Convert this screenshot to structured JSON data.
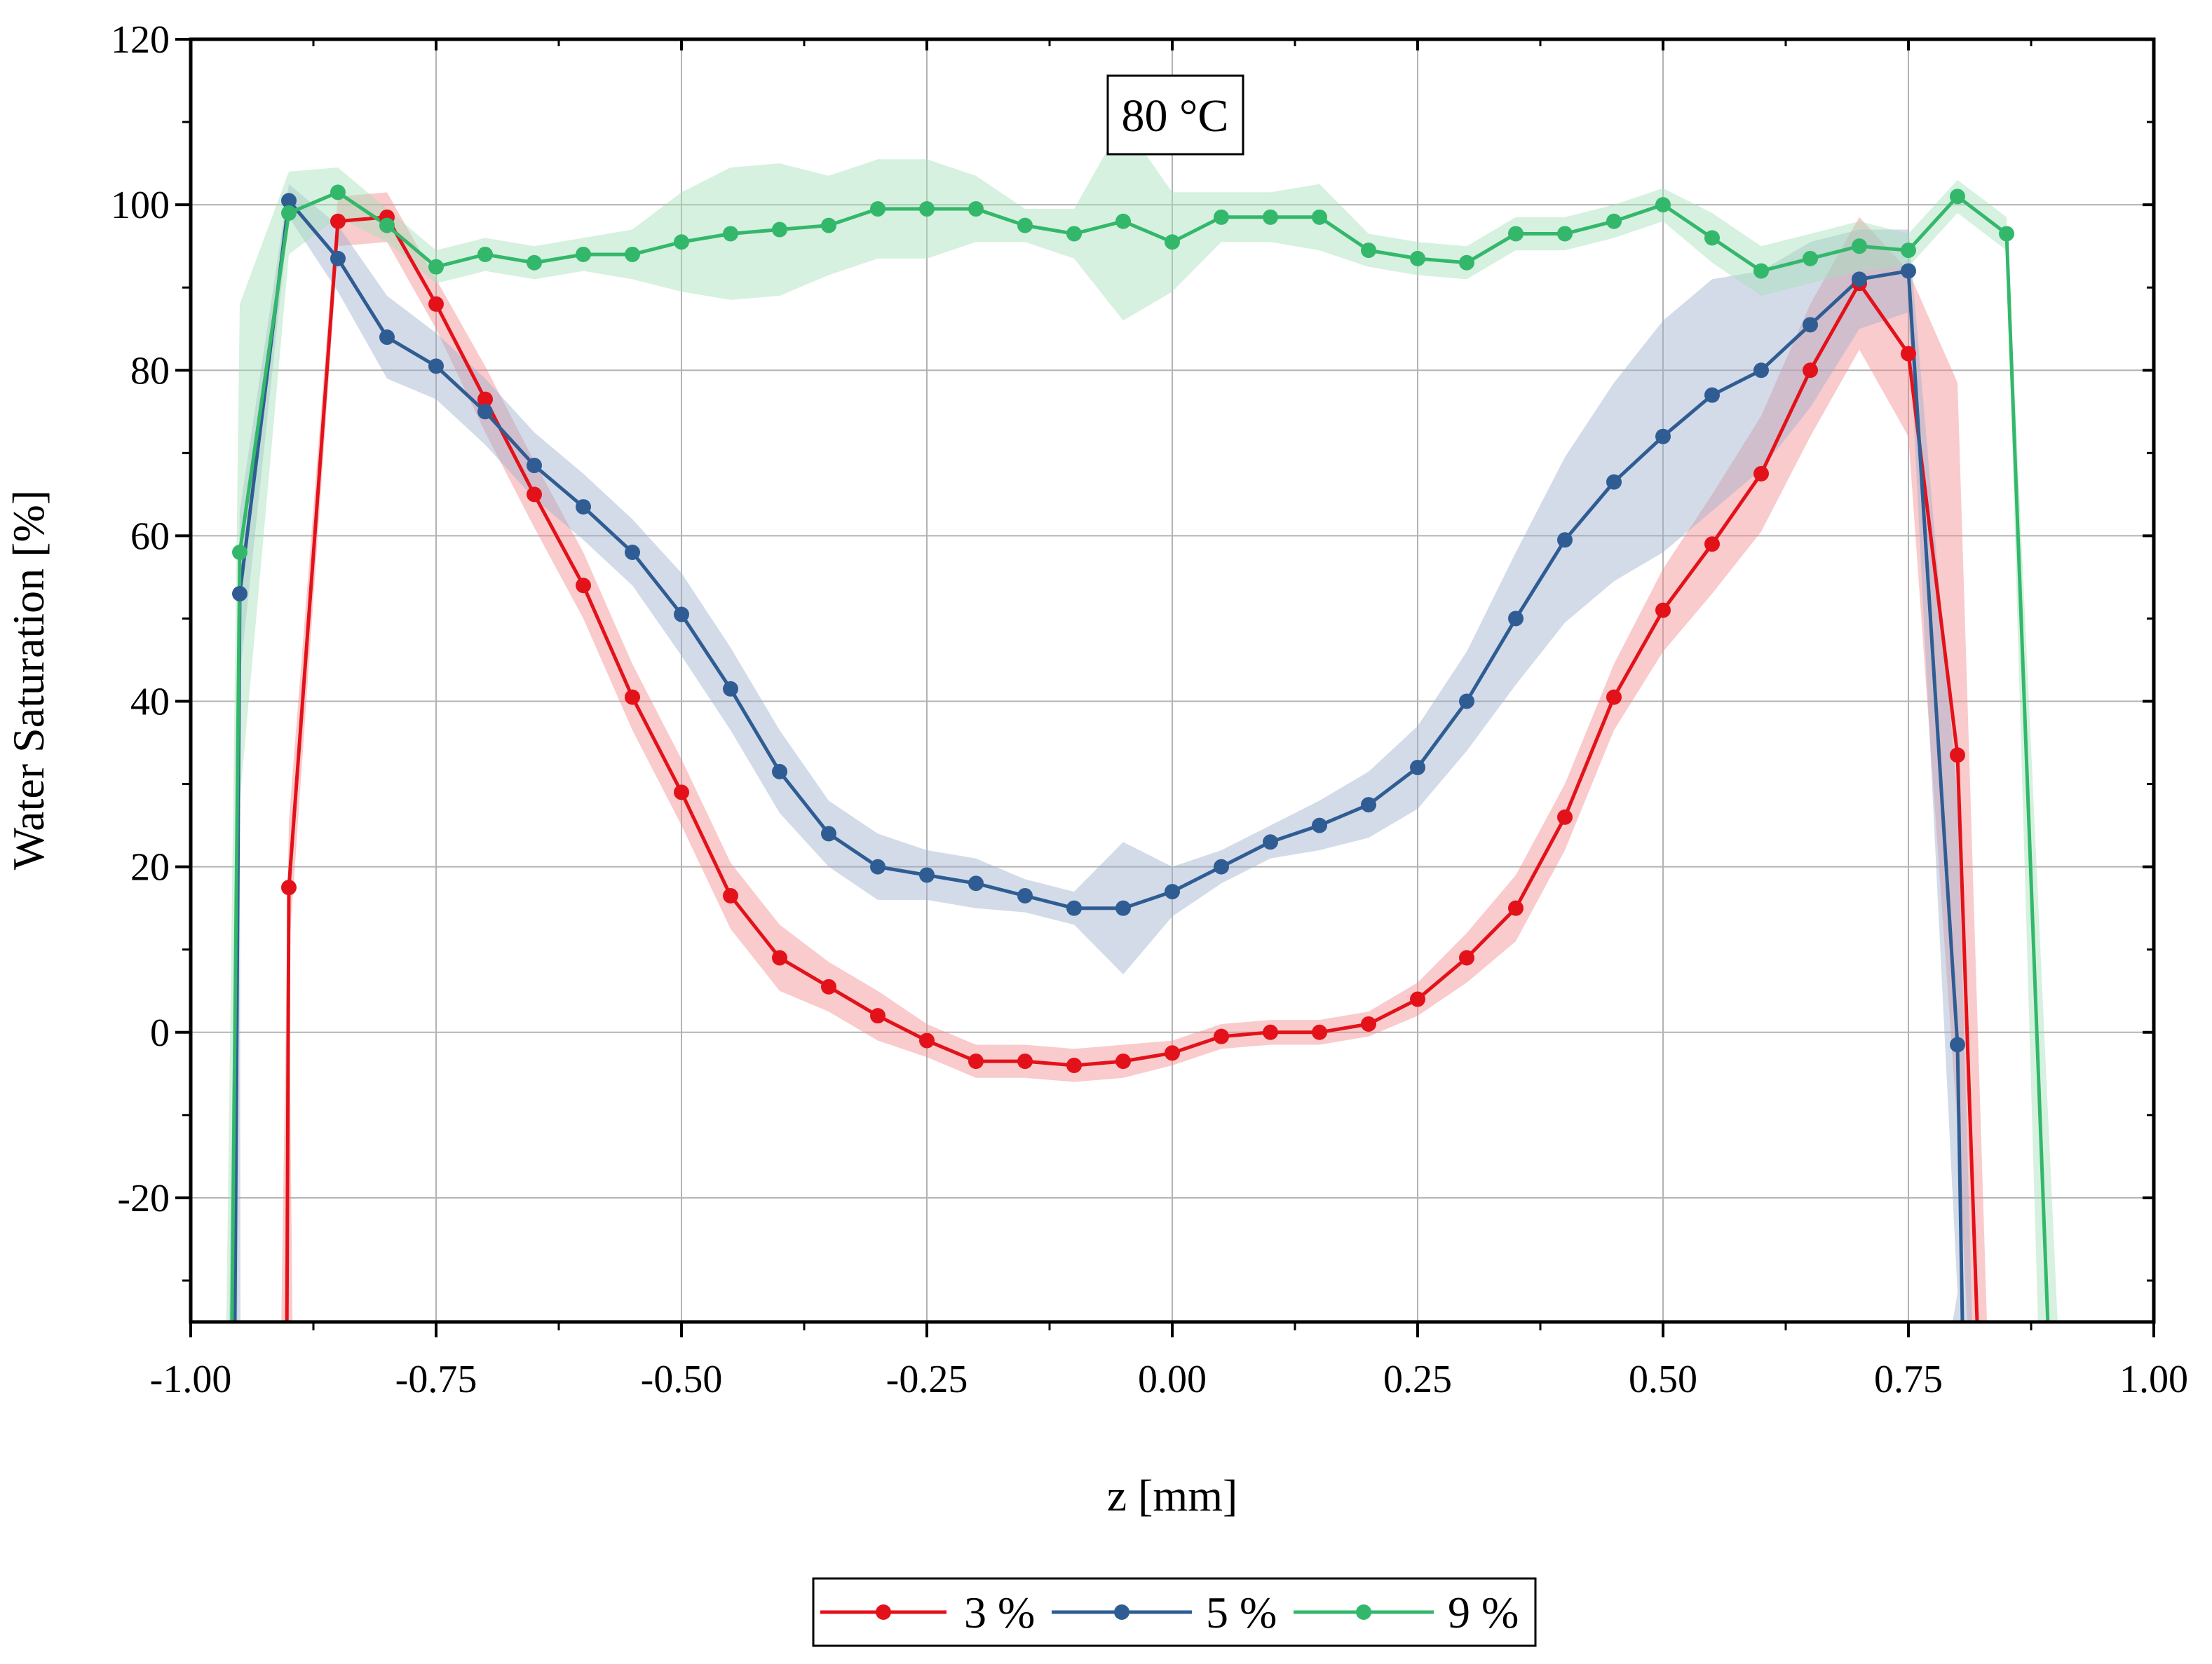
{
  "chart_data": {
    "type": "line",
    "title": "",
    "annotation": "80 °C",
    "xlabel": "z [mm]",
    "ylabel": "Water Saturation [%]",
    "xlim": [
      -1.0,
      1.0
    ],
    "ylim": [
      -35,
      120
    ],
    "xticks": [
      -1.0,
      -0.75,
      -0.5,
      -0.25,
      0.0,
      0.25,
      0.5,
      0.75,
      1.0
    ],
    "xtick_labels": [
      "-1.00",
      "-0.75",
      "-0.50",
      "-0.25",
      "0.00",
      "0.25",
      "0.50",
      "0.75",
      "1.00"
    ],
    "yticks": [
      -20,
      0,
      20,
      40,
      60,
      80,
      100,
      120
    ],
    "ytick_labels": [
      "-20",
      "0",
      "20",
      "40",
      "60",
      "80",
      "100",
      "120"
    ],
    "grid": true,
    "legend_position": "bottom-center",
    "series": [
      {
        "name": "3 %",
        "label": "3 %",
        "color": "#e3121a",
        "band_color": "#f28b8f",
        "x": [
          -0.9,
          -0.85,
          -0.8,
          -0.75,
          -0.7,
          -0.65,
          -0.6,
          -0.55,
          -0.5,
          -0.45,
          -0.4,
          -0.35,
          -0.3,
          -0.25,
          -0.2,
          -0.15,
          -0.1,
          -0.05,
          0.0,
          0.05,
          0.1,
          0.15,
          0.2,
          0.25,
          0.3,
          0.35,
          0.4,
          0.45,
          0.5,
          0.55,
          0.6,
          0.65,
          0.7,
          0.75,
          0.8
        ],
        "y": [
          17.5,
          98,
          98.5,
          88,
          76.5,
          65,
          54,
          40.5,
          29,
          16.5,
          9,
          5.5,
          2,
          -1,
          -3.5,
          -3.5,
          -4,
          -3.5,
          -2.5,
          -0.5,
          0,
          0,
          1,
          4,
          9,
          15,
          26,
          40.5,
          51,
          59,
          67.5,
          80,
          90.5,
          82,
          33.5
        ],
        "band": [
          8,
          3,
          3,
          3,
          4,
          4,
          4,
          4,
          4,
          4,
          4,
          3,
          3,
          2,
          2,
          2,
          2,
          2,
          1.5,
          1.5,
          1.5,
          1.5,
          1.5,
          2,
          3,
          4,
          4,
          4,
          5,
          6,
          7,
          8,
          8,
          10,
          45
        ],
        "tail": {
          "x0": -0.9,
          "y0": 17.5,
          "x1": -0.902,
          "y1": -35,
          "x2": 0.8,
          "y2": 33.5,
          "x3": 0.82,
          "y3": -35
        }
      },
      {
        "name": "5 %",
        "label": "5 %",
        "color": "#2f5d93",
        "band_color": "#9db0cf",
        "x": [
          -0.95,
          -0.9,
          -0.85,
          -0.8,
          -0.75,
          -0.7,
          -0.65,
          -0.6,
          -0.55,
          -0.5,
          -0.45,
          -0.4,
          -0.35,
          -0.3,
          -0.25,
          -0.2,
          -0.15,
          -0.1,
          -0.05,
          0.0,
          0.05,
          0.1,
          0.15,
          0.2,
          0.25,
          0.3,
          0.35,
          0.4,
          0.45,
          0.5,
          0.55,
          0.6,
          0.65,
          0.7,
          0.75,
          0.8
        ],
        "y": [
          53,
          100.5,
          93.5,
          84,
          80.5,
          75,
          68.5,
          63.5,
          58,
          50.5,
          41.5,
          31.5,
          24,
          20,
          19,
          18,
          16.5,
          15,
          15,
          17,
          20,
          23,
          25,
          27.5,
          32,
          40,
          50,
          59.5,
          66.5,
          72,
          77,
          80,
          85.5,
          91,
          92,
          -1.5
        ],
        "band": [
          10,
          2,
          4,
          5,
          4,
          4,
          4,
          4,
          4,
          5,
          5,
          5,
          4,
          4,
          3,
          3,
          2,
          2,
          8,
          3,
          2,
          2,
          3,
          4,
          5,
          6,
          8,
          10,
          12,
          14,
          14,
          12,
          10,
          6,
          5,
          30
        ],
        "tail": {
          "x0": -0.95,
          "y0": 53,
          "x1": -0.955,
          "y1": -35,
          "x2": 0.8,
          "y2": -1.5,
          "x3": 0.805,
          "y3": -35
        }
      },
      {
        "name": "9 %",
        "label": "9 %",
        "color": "#33b86b",
        "band_color": "#a3dfb8",
        "x": [
          -0.95,
          -0.9,
          -0.85,
          -0.8,
          -0.75,
          -0.7,
          -0.65,
          -0.6,
          -0.55,
          -0.5,
          -0.45,
          -0.4,
          -0.35,
          -0.3,
          -0.25,
          -0.2,
          -0.15,
          -0.1,
          -0.05,
          0.0,
          0.05,
          0.1,
          0.15,
          0.2,
          0.25,
          0.3,
          0.35,
          0.4,
          0.45,
          0.5,
          0.55,
          0.6,
          0.65,
          0.7,
          0.75,
          0.8,
          0.85
        ],
        "y": [
          58,
          99,
          101.5,
          97.5,
          92.5,
          94,
          93,
          94,
          94,
          95.5,
          96.5,
          97,
          97.5,
          99.5,
          99.5,
          99.5,
          97.5,
          96.5,
          98,
          95.5,
          98.5,
          98.5,
          98.5,
          94.5,
          93.5,
          93,
          96.5,
          96.5,
          98,
          100,
          96,
          92,
          93.5,
          95,
          94.5,
          101,
          96.5
        ],
        "band": [
          30,
          5,
          3,
          2,
          2,
          2,
          2,
          2,
          3,
          6,
          8,
          8,
          6,
          6,
          6,
          4,
          2,
          3,
          12,
          6,
          3,
          3,
          4,
          2,
          2,
          2,
          2,
          2,
          2,
          2,
          3,
          3,
          3,
          3,
          2,
          2,
          2
        ],
        "tail": {
          "x0": -0.95,
          "y0": 58,
          "x1": -0.958,
          "y1": -35,
          "x2": 0.85,
          "y2": 96.5,
          "x3": 0.892,
          "y3": -35
        }
      }
    ]
  }
}
